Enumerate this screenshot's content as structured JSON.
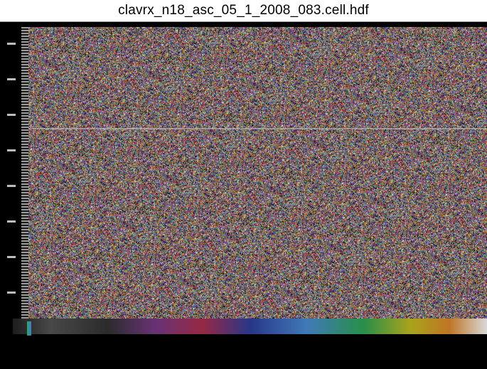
{
  "window": {
    "title": "clavrx_n18_asc_05_1_2008_083.cell.hdf"
  },
  "colorbar": {
    "tick_labels": [
      "",
      "",
      "",
      "",
      "",
      ""
    ],
    "label": ""
  },
  "colors": {
    "background": "#000000",
    "title_bar": "#ffffff"
  }
}
